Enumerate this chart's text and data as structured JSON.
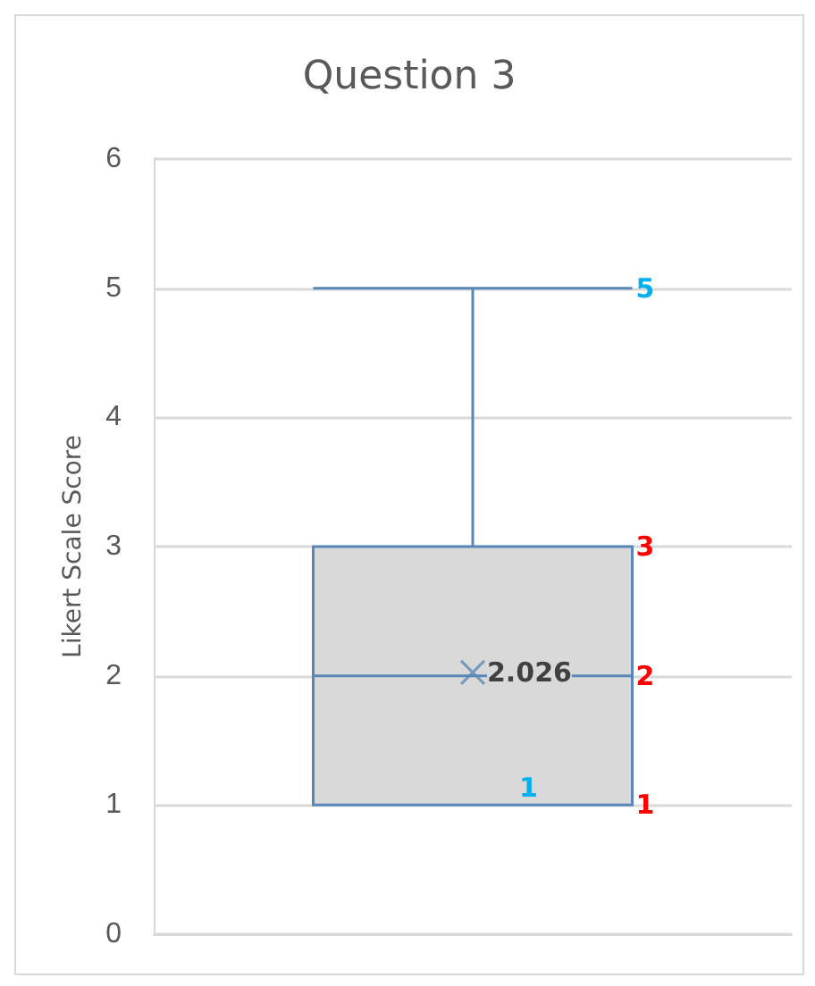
{
  "chart_data": {
    "type": "box",
    "title": "Question 3",
    "ylabel": "Likert Scale Score",
    "categories": [
      null
    ],
    "color": "#5b87b8",
    "boxes": [
      {
        "low": 1,
        "q1": 1,
        "median": 2,
        "q3": 3,
        "high": 5,
        "mean": 2.026
      }
    ],
    "annotations": [
      "5",
      "3",
      "2",
      "1",
      "1",
      "2.026"
    ],
    "ylim": [
      0,
      6
    ],
    "yticks": [
      0,
      1,
      2,
      3,
      4,
      5,
      6
    ],
    "grid": "y",
    "marker": "cross",
    "tick_labels": "y"
  }
}
